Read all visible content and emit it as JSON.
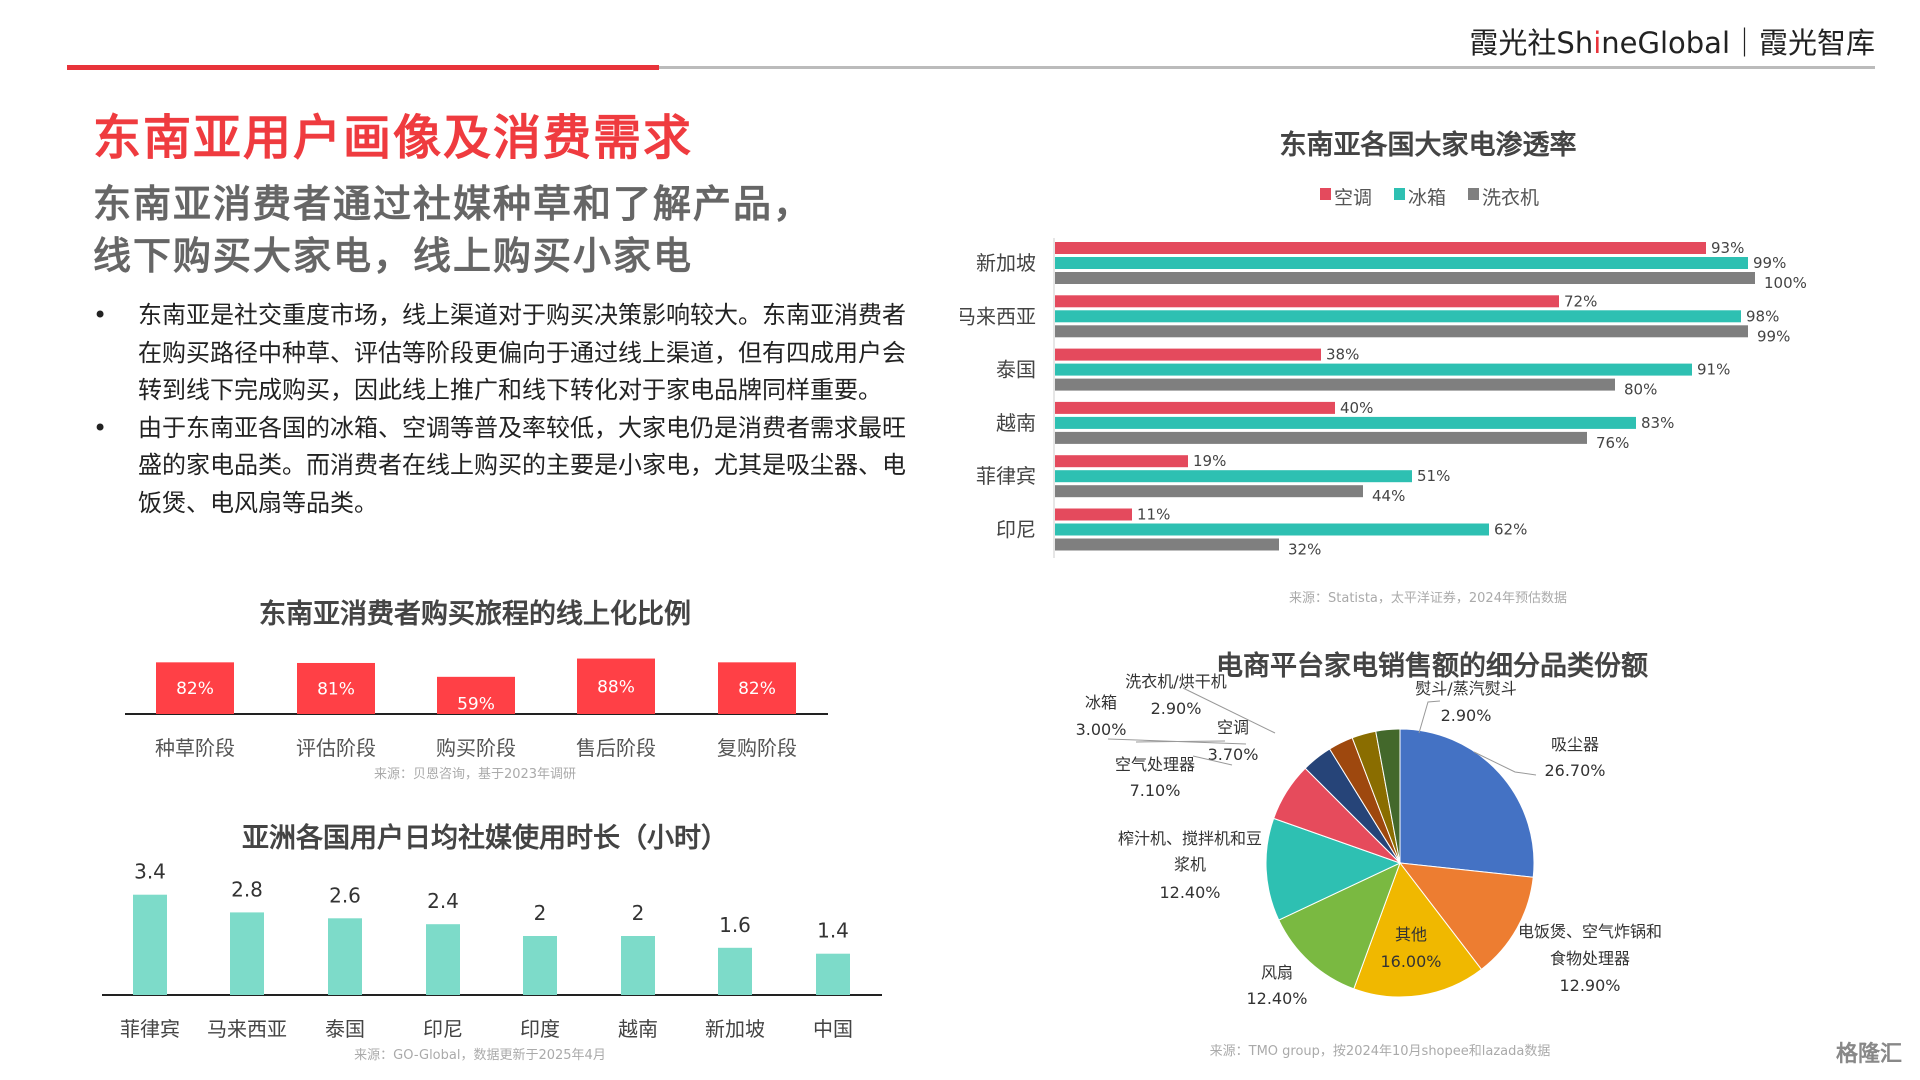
{
  "header": {
    "logo_left": "霞光社Sh",
    "logo_hi": "i",
    "logo_right": "neGlobal｜霞光智库",
    "watermark": "格隆汇"
  },
  "title": "东南亚用户画像及消费需求",
  "subtitle": [
    "东南亚消费者通过社媒种草和了解产品，",
    "线下购买大家电，线上购买小家电"
  ],
  "bullets": [
    "东南亚是社交重度市场，线上渠道对于购买决策影响较大。东南亚消费者在购买路径中种草、评估等阶段更偏向于通过线上渠道，但有四成用户会转到线下完成购买，因此线上推广和线下转化对于家电品牌同样重要。",
    "由于东南亚各国的冰箱、空调等普及率较低，大家电仍是消费者需求最旺盛的家电品类。而消费者在线上购买的主要是小家电，尤其是吸尘器、电饭煲、电风扇等品类。"
  ],
  "chart_data": [
    {
      "type": "bar",
      "title": "东南亚消费者购买旅程的线上化比例",
      "categories": [
        "种草阶段",
        "评估阶段",
        "购买阶段",
        "售后阶段",
        "复购阶段"
      ],
      "values": [
        82,
        81,
        59,
        88,
        82
      ],
      "labels": [
        "82%",
        "81%",
        "59%",
        "88%",
        "82%"
      ],
      "color": "#ff4046",
      "source": "来源：贝恩咨询，基于2023年调研"
    },
    {
      "type": "bar",
      "title": "亚洲各国用户日均社媒使用时长（小时）",
      "categories": [
        "菲律宾",
        "马来西亚",
        "泰国",
        "印尼",
        "印度",
        "越南",
        "新加坡",
        "中国"
      ],
      "values": [
        3.4,
        2.8,
        2.6,
        2.4,
        2,
        2,
        1.6,
        1.4
      ],
      "labels": [
        "3.4",
        "2.8",
        "2.6",
        "2.4",
        "2",
        "2",
        "1.6",
        "1.4"
      ],
      "color": "#7ddbc9",
      "source": "来源：GO-Global，数据更新于2025年4月"
    },
    {
      "type": "bar",
      "orientation": "horizontal",
      "title": "东南亚各国大家电渗透率",
      "categories": [
        "新加坡",
        "马来西亚",
        "泰国",
        "越南",
        "菲律宾",
        "印尼"
      ],
      "legend": "top",
      "series": [
        {
          "name": "空调",
          "color": "#e44a5d",
          "values": [
            93,
            72,
            38,
            40,
            19,
            11
          ],
          "labels": [
            "93%",
            "72%",
            "38%",
            "40%",
            "19%",
            "11%"
          ]
        },
        {
          "name": "冰箱",
          "color": "#2ec0b2",
          "values": [
            99,
            98,
            91,
            83,
            51,
            62
          ],
          "labels": [
            "99%",
            "98%",
            "91%",
            "83%",
            "51%",
            "62%"
          ]
        },
        {
          "name": "洗衣机",
          "color": "#7f7f7f",
          "values": [
            100,
            99,
            80,
            76,
            44,
            32
          ],
          "labels": [
            "100%",
            "99%",
            "80%",
            "76%",
            "44%",
            "32%"
          ]
        }
      ],
      "source": "来源：Statista，太平洋证券，2024年预估数据"
    },
    {
      "type": "pie",
      "title": "电商平台家电销售额的细分品类份额",
      "slices": [
        {
          "name": "吸尘器",
          "value": 26.7,
          "label": "26.70%",
          "color": "#4472c4"
        },
        {
          "name": "电饭煲、空气炸锅和食物处理器",
          "value": 12.9,
          "label": "12.90%",
          "color": "#ed7d31"
        },
        {
          "name": "其他",
          "value": 16.0,
          "label": "16.00%",
          "color": "#f0b800"
        },
        {
          "name": "风扇",
          "value": 12.4,
          "label": "12.40%",
          "color": "#7ab941"
        },
        {
          "name": "榨汁机、搅拌机和豆浆机",
          "value": 12.4,
          "label": "12.40%",
          "color": "#2ec0b2"
        },
        {
          "name": "空气处理器",
          "value": 7.1,
          "label": "7.10%",
          "color": "#e64b5c"
        },
        {
          "name": "空调",
          "value": 3.7,
          "label": "3.70%",
          "color": "#264478"
        },
        {
          "name": "冰箱",
          "value": 3.0,
          "label": "3.00%",
          "color": "#9e480e"
        },
        {
          "name": "洗衣机/烘干机",
          "value": 2.9,
          "label": "2.90%",
          "color": "#8a6d00"
        },
        {
          "name": "熨斗/蒸汽熨斗",
          "value": 2.9,
          "label": "2.90%",
          "color": "#43682b"
        }
      ],
      "source": "来源：TMO group，按2024年10月shopee和lazada数据"
    }
  ]
}
